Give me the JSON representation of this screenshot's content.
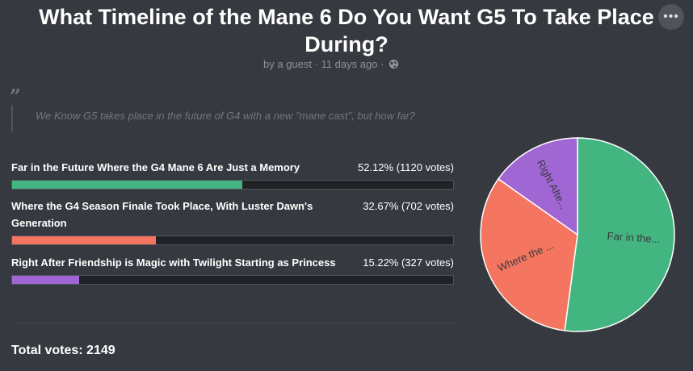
{
  "poll": {
    "title": "What Timeline of the Mane 6 Do You Want G5 To Take Place During?",
    "byline": "by a guest · 11 days ago ·",
    "byline_icon": "globe-icon",
    "more_icon": "ellipsis-icon",
    "quote_icon": "quote-icon",
    "description": "We Know G5 takes place in the future of G4 with a new \"mane cast\", but how far?",
    "options": [
      {
        "label": "Far in the Future Where the G4 Mane 6 Are Just a Memory",
        "stat": "52.12% (1120 votes)",
        "percent": 52.12,
        "color": "#43b581",
        "short": "Far in the..."
      },
      {
        "label": "Where the G4 Season Finale Took Place, With Luster Dawn's Generation",
        "stat": "32.67% (702 votes)",
        "percent": 32.67,
        "color": "#f47560",
        "short": "Where the ..."
      },
      {
        "label": "Right After Friendship is Magic with Twilight Starting as Princess",
        "stat": "15.22% (327 votes)",
        "percent": 15.22,
        "color": "#a066d3",
        "short": "Right Afte..."
      }
    ],
    "total": "Total votes: 2149"
  },
  "chart_data": {
    "type": "pie",
    "categories": [
      "Far in the...",
      "Where the ...",
      "Right Afte..."
    ],
    "values": [
      1120,
      702,
      327
    ],
    "percentages": [
      52.12,
      32.67,
      15.22
    ],
    "colors": [
      "#43b581",
      "#f47560",
      "#a066d3"
    ]
  }
}
